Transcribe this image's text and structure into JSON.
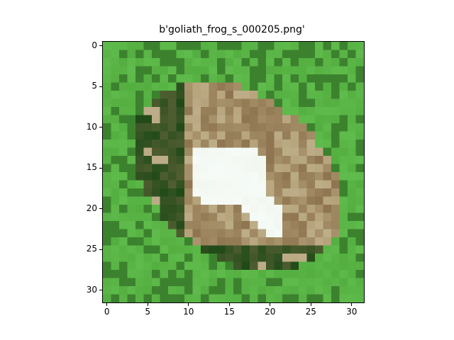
{
  "figure": {
    "title": "b'goliath_frog_s_000205.png'"
  },
  "image": {
    "description_key": "pixelated photo",
    "grid_size": [
      32,
      32
    ]
  },
  "axes": {
    "x_ticks": [
      "0",
      "5",
      "10",
      "15",
      "20",
      "25",
      "30"
    ],
    "y_ticks": [
      "0",
      "5",
      "10",
      "15",
      "20",
      "25",
      "30"
    ]
  },
  "colors": {
    "grass_bright": "#6fcf5a",
    "grass_mid": "#4fa83c",
    "grass_dark": "#1f4a18",
    "frog_light": "#e8f0dc",
    "frog_tan": "#b5a27a",
    "frog_brown": "#8e7550",
    "frog_white": "#f6fbf8"
  }
}
